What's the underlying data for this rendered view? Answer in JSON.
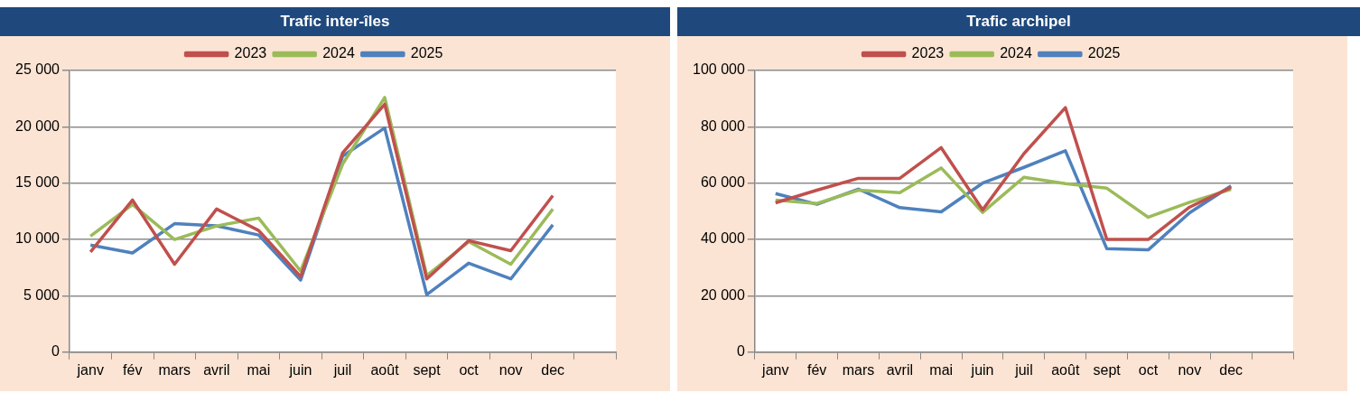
{
  "chart_data": [
    {
      "type": "line",
      "title": "Trafic inter-îles",
      "categories": [
        "janv",
        "fév",
        "mars",
        "avril",
        "mai",
        "juin",
        "juil",
        "août",
        "sept",
        "oct",
        "nov",
        "dec",
        null
      ],
      "series": [
        {
          "name": "2023",
          "color": "#c0504d",
          "values": [
            8900,
            13500,
            7800,
            12700,
            10800,
            6700,
            17700,
            22000,
            6500,
            9900,
            9000,
            13900,
            null
          ]
        },
        {
          "name": "2024",
          "color": "#9bbb59",
          "values": [
            10300,
            13100,
            10000,
            11200,
            11900,
            7200,
            16700,
            22600,
            6800,
            9800,
            7800,
            12700,
            null
          ]
        },
        {
          "name": "2025",
          "color": "#4f81bd",
          "values": [
            9500,
            8800,
            11400,
            11200,
            10400,
            6400,
            17400,
            19900,
            5100,
            7900,
            6500,
            11300,
            null
          ]
        }
      ],
      "ylim": [
        0,
        25000
      ],
      "yticks": [
        0,
        {
          "value": 5000,
          "label": "5 000"
        },
        {
          "value": 10000,
          "label": "10 000"
        },
        {
          "value": 15000,
          "label": "15 000"
        },
        {
          "value": 20000,
          "label": "20 000"
        },
        {
          "value": 25000,
          "label": "25 000"
        }
      ],
      "grid": "y",
      "legend": "top"
    },
    {
      "type": "line",
      "title": "Trafic archipel",
      "categories": [
        "janv",
        "fév",
        "mars",
        "avril",
        "mai",
        "juin",
        "juil",
        "août",
        "sept",
        "oct",
        "nov",
        "dec",
        null
      ],
      "series": [
        {
          "name": "2023",
          "color": "#c0504d",
          "values": [
            53000,
            57500,
            61700,
            61700,
            72600,
            50500,
            70500,
            86800,
            40000,
            40000,
            51500,
            58500,
            null
          ]
        },
        {
          "name": "2024",
          "color": "#9bbb59",
          "values": [
            54000,
            52800,
            57500,
            56600,
            65400,
            49600,
            62100,
            59800,
            58200,
            47900,
            53200,
            57800,
            null
          ]
        },
        {
          "name": "2025",
          "color": "#4f81bd",
          "values": [
            56300,
            52500,
            57900,
            51300,
            49800,
            60000,
            65600,
            71500,
            36700,
            36300,
            49500,
            59000,
            null
          ]
        }
      ],
      "ylim": [
        0,
        100000
      ],
      "yticks": [
        0,
        {
          "value": 20000,
          "label": "20 000"
        },
        {
          "value": 40000,
          "label": "40 000"
        },
        {
          "value": 60000,
          "label": "60 000"
        },
        {
          "value": 80000,
          "label": "80 000"
        },
        {
          "value": 100000,
          "label": "100 000"
        }
      ],
      "grid": "y",
      "legend": "top"
    }
  ]
}
